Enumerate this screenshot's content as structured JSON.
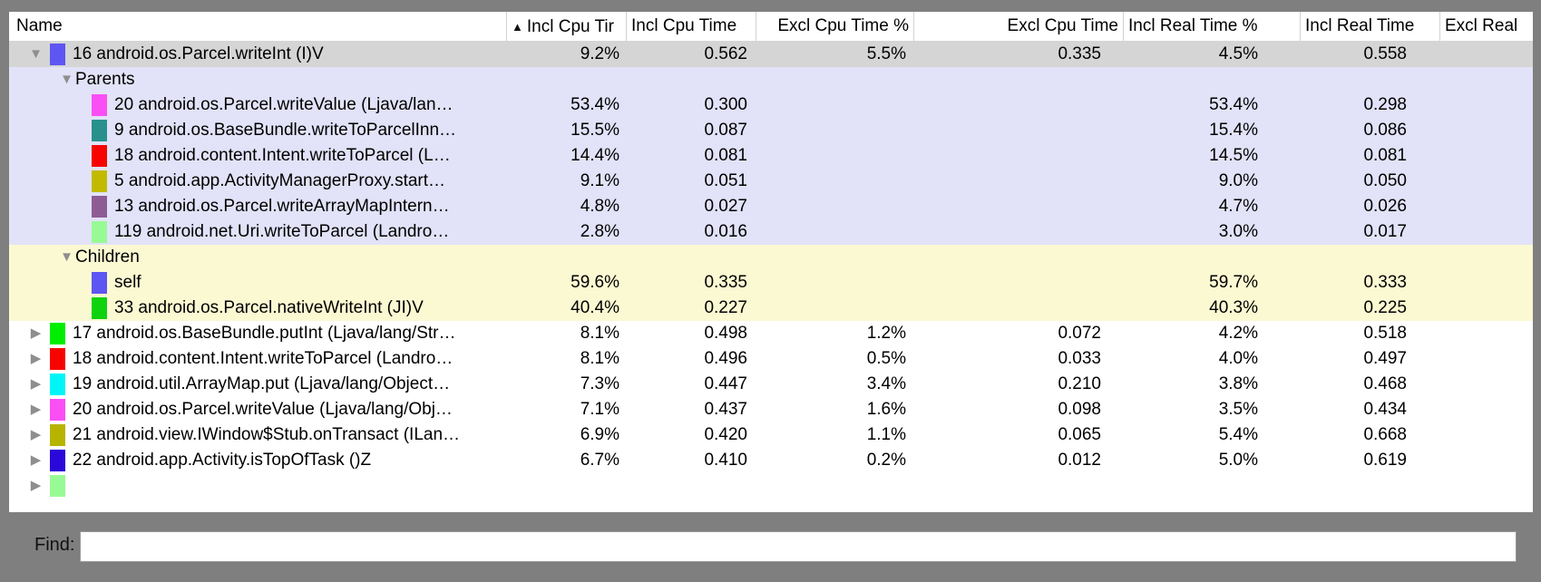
{
  "table": {
    "columns": [
      {
        "id": "name",
        "label": "Name"
      },
      {
        "id": "incl_cpu_pct",
        "label": "Incl Cpu Tir",
        "sorted": "asc"
      },
      {
        "id": "incl_cpu",
        "label": "Incl Cpu Time"
      },
      {
        "id": "excl_cpu_pct",
        "label": "Excl Cpu Time %"
      },
      {
        "id": "excl_cpu",
        "label": "Excl Cpu Time"
      },
      {
        "id": "incl_real_pct",
        "label": "Incl Real Time %"
      },
      {
        "id": "incl_real",
        "label": "Incl Real Time"
      },
      {
        "id": "excl_real",
        "label": "Excl Real"
      }
    ],
    "sort_icon": "▲",
    "expander_icons": {
      "expanded": "▼",
      "collapsed": "▶"
    },
    "row_colors": {
      "selected": "#d5d5d5",
      "parents": "#e2e2f8",
      "children": "#fbf9d2",
      "white": "#ffffff"
    },
    "rows": [
      {
        "type": "method",
        "level": 1,
        "expander": "expanded",
        "chip": "#5e56f2",
        "bg": "selected",
        "name": "16 android.os.Parcel.writeInt (I)V",
        "values": [
          "9.2%",
          "0.562",
          "5.5%",
          "0.335",
          "4.5%",
          "0.558",
          ""
        ]
      },
      {
        "type": "group",
        "level": 2,
        "expander": "expanded",
        "chip": null,
        "bg": "parents",
        "name": "Parents",
        "values": [
          "",
          "",
          "",
          "",
          "",
          "",
          ""
        ]
      },
      {
        "type": "method",
        "level": 3,
        "expander": null,
        "chip": "#fa4ff5",
        "bg": "parents",
        "name": "20 android.os.Parcel.writeValue (Ljava/lan…",
        "values": [
          "53.4%",
          "0.300",
          "",
          "",
          "53.4%",
          "0.298",
          ""
        ]
      },
      {
        "type": "method",
        "level": 3,
        "expander": null,
        "chip": "#28918c",
        "bg": "parents",
        "name": "9 android.os.BaseBundle.writeToParcelInn…",
        "values": [
          "15.5%",
          "0.087",
          "",
          "",
          "15.4%",
          "0.086",
          ""
        ]
      },
      {
        "type": "method",
        "level": 3,
        "expander": null,
        "chip": "#f80400",
        "bg": "parents",
        "name": "18 android.content.Intent.writeToParcel (L…",
        "values": [
          "14.4%",
          "0.081",
          "",
          "",
          "14.5%",
          "0.081",
          ""
        ]
      },
      {
        "type": "method",
        "level": 3,
        "expander": null,
        "chip": "#c2ba00",
        "bg": "parents",
        "name": "5 android.app.ActivityManagerProxy.start…",
        "values": [
          "9.1%",
          "0.051",
          "",
          "",
          "9.0%",
          "0.050",
          ""
        ]
      },
      {
        "type": "method",
        "level": 3,
        "expander": null,
        "chip": "#8e5c95",
        "bg": "parents",
        "name": "13 android.os.Parcel.writeArrayMapIntern…",
        "values": [
          "4.8%",
          "0.027",
          "",
          "",
          "4.7%",
          "0.026",
          ""
        ]
      },
      {
        "type": "method",
        "level": 3,
        "expander": null,
        "chip": "#98fa95",
        "bg": "parents",
        "name": "119 android.net.Uri.writeToParcel (Landro…",
        "values": [
          "2.8%",
          "0.016",
          "",
          "",
          "3.0%",
          "0.017",
          ""
        ]
      },
      {
        "type": "group",
        "level": 2,
        "expander": "expanded",
        "chip": null,
        "bg": "children",
        "name": "Children",
        "values": [
          "",
          "",
          "",
          "",
          "",
          "",
          ""
        ]
      },
      {
        "type": "method",
        "level": 3,
        "expander": null,
        "chip": "#5e56f2",
        "bg": "children",
        "name": "self",
        "values": [
          "59.6%",
          "0.335",
          "",
          "",
          "59.7%",
          "0.333",
          ""
        ]
      },
      {
        "type": "method",
        "level": 3,
        "expander": null,
        "chip": "#0ed30e",
        "bg": "children",
        "name": "33 android.os.Parcel.nativeWriteInt (JI)V",
        "values": [
          "40.4%",
          "0.227",
          "",
          "",
          "40.3%",
          "0.225",
          ""
        ]
      },
      {
        "type": "method",
        "level": 1,
        "expander": "collapsed",
        "chip": "#00ef00",
        "bg": "white",
        "name": "17 android.os.BaseBundle.putInt (Ljava/lang/Str…",
        "values": [
          "8.1%",
          "0.498",
          "1.2%",
          "0.072",
          "4.2%",
          "0.518",
          ""
        ]
      },
      {
        "type": "method",
        "level": 1,
        "expander": "collapsed",
        "chip": "#f80400",
        "bg": "white",
        "name": "18 android.content.Intent.writeToParcel (Landro…",
        "values": [
          "8.1%",
          "0.496",
          "0.5%",
          "0.033",
          "4.0%",
          "0.497",
          ""
        ]
      },
      {
        "type": "method",
        "level": 1,
        "expander": "collapsed",
        "chip": "#00f6f6",
        "bg": "white",
        "name": "19 android.util.ArrayMap.put (Ljava/lang/Object…",
        "values": [
          "7.3%",
          "0.447",
          "3.4%",
          "0.210",
          "3.8%",
          "0.468",
          ""
        ]
      },
      {
        "type": "method",
        "level": 1,
        "expander": "collapsed",
        "chip": "#fa4ff5",
        "bg": "white",
        "name": "20 android.os.Parcel.writeValue (Ljava/lang/Obj…",
        "values": [
          "7.1%",
          "0.437",
          "1.6%",
          "0.098",
          "3.5%",
          "0.434",
          ""
        ]
      },
      {
        "type": "method",
        "level": 1,
        "expander": "collapsed",
        "chip": "#b7b400",
        "bg": "white",
        "name": "21 android.view.IWindow$Stub.onTransact (ILan…",
        "values": [
          "6.9%",
          "0.420",
          "1.1%",
          "0.065",
          "5.4%",
          "0.668",
          ""
        ]
      },
      {
        "type": "method",
        "level": 1,
        "expander": "collapsed",
        "chip": "#2a08da",
        "bg": "white",
        "name": "22 android.app.Activity.isTopOfTask ()Z",
        "values": [
          "6.7%",
          "0.410",
          "0.2%",
          "0.012",
          "5.0%",
          "0.619",
          ""
        ]
      },
      {
        "type": "method",
        "level": 1,
        "expander": "collapsed",
        "chip": "#98fa95",
        "bg": "white",
        "name": "",
        "values": [
          "",
          "",
          "",
          "",
          "",
          "",
          ""
        ]
      }
    ]
  },
  "find": {
    "label": "Find:",
    "value": ""
  }
}
